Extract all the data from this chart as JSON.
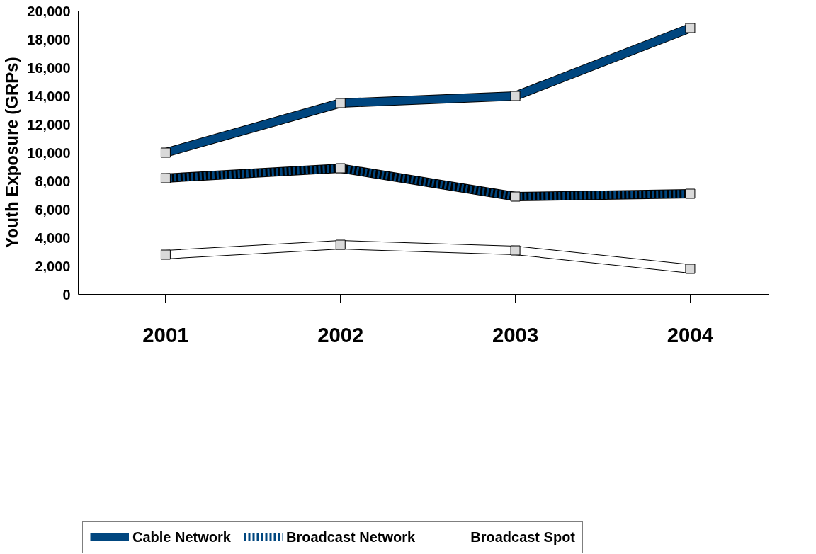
{
  "chart_data": {
    "type": "line",
    "ylabel": "Youth Exposure (GRPs)",
    "categories": [
      "2001",
      "2002",
      "2003",
      "2004"
    ],
    "ylim": [
      0,
      20000
    ],
    "yticks": [
      {
        "value": 0,
        "label": "0"
      },
      {
        "value": 2000,
        "label": "2,000"
      },
      {
        "value": 4000,
        "label": "4,000"
      },
      {
        "value": 6000,
        "label": "6,000"
      },
      {
        "value": 8000,
        "label": "8,000"
      },
      {
        "value": 10000,
        "label": "10,000"
      },
      {
        "value": 12000,
        "label": "12,000"
      },
      {
        "value": 14000,
        "label": "14,000"
      },
      {
        "value": 16000,
        "label": "16,000"
      },
      {
        "value": 18000,
        "label": "18,000"
      },
      {
        "value": 20000,
        "label": "20,000"
      }
    ],
    "series": [
      {
        "name": "Cable Network",
        "color": "#00467f",
        "values": [
          10000,
          13500,
          14000,
          18800
        ]
      },
      {
        "name": "Broadcast Network",
        "color": "#00467f",
        "line_style": "dashed",
        "values": [
          8200,
          8900,
          6900,
          7100
        ]
      },
      {
        "name": "Broadcast Spot",
        "color": "#ffffff",
        "values": [
          2800,
          3500,
          3100,
          1800
        ]
      }
    ],
    "marker": "square",
    "legend": "bottom",
    "grid": false
  }
}
